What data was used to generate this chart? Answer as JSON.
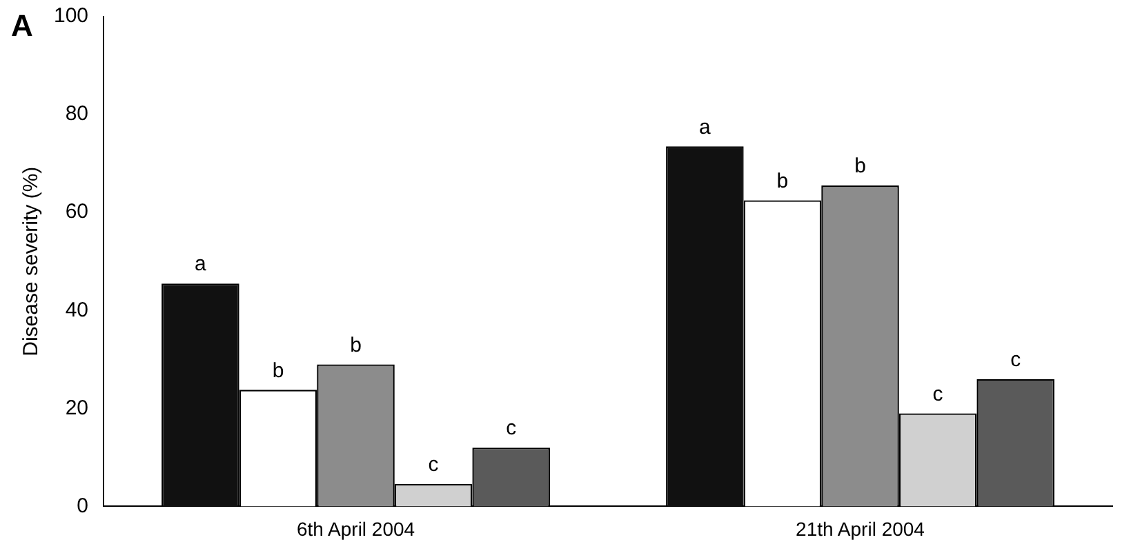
{
  "chart_data": {
    "type": "bar",
    "title": "A",
    "ylabel": "Disease severity (%)",
    "categories": [
      "6th April 2004",
      "21th April 2004"
    ],
    "series": [
      {
        "color": "#111111",
        "values": [
          45.5,
          73.5
        ],
        "value_labels": [
          "a",
          "a"
        ]
      },
      {
        "color": "#ffffff",
        "values": [
          23.8,
          62.5
        ],
        "value_labels": [
          "b",
          "b"
        ]
      },
      {
        "color": "#8c8c8c",
        "values": [
          29,
          65.5
        ],
        "value_labels": [
          "b",
          "b"
        ]
      },
      {
        "color": "#d0d0d0",
        "values": [
          4.6,
          19
        ],
        "value_labels": [
          "c",
          "c"
        ]
      },
      {
        "color": "#5a5a5a",
        "values": [
          12,
          26
        ],
        "value_labels": [
          "c",
          "c"
        ]
      }
    ],
    "ylim": [
      0,
      100
    ],
    "yticks": [
      0,
      20,
      40,
      60,
      80,
      100
    ],
    "grid": false,
    "legend": false
  }
}
